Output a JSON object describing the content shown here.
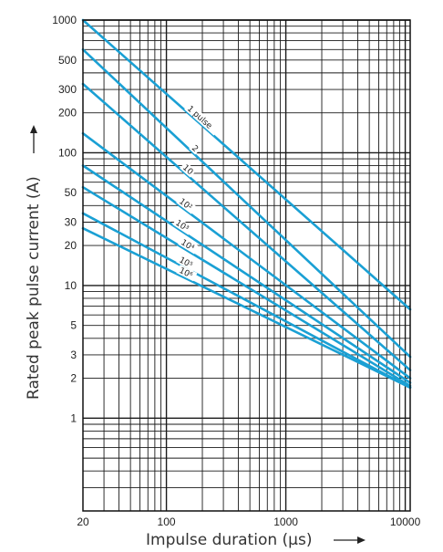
{
  "chart_data": {
    "type": "line",
    "title": "",
    "xlabel": "Impulse duration (μs)",
    "ylabel": "Rated peak pulse current (A)",
    "x_scale": "log",
    "y_scale": "log",
    "xlim": [
      20,
      11000
    ],
    "ylim": [
      0.2,
      1000
    ],
    "grid": true,
    "x_ticks": [
      20,
      100,
      1000,
      10000
    ],
    "y_ticks": [
      1000,
      500,
      300,
      200,
      100,
      50,
      30,
      20,
      10,
      5,
      3,
      2,
      1
    ],
    "series": [
      {
        "name": "1 pulse",
        "x": [
          20,
          11000
        ],
        "y": [
          1000,
          6.6
        ]
      },
      {
        "name": "2",
        "x": [
          20,
          11000
        ],
        "y": [
          600,
          2.9
        ]
      },
      {
        "name": "10",
        "x": [
          20,
          11000
        ],
        "y": [
          330,
          2.3
        ]
      },
      {
        "name": "10²",
        "x": [
          20,
          11000
        ],
        "y": [
          140,
          2.0
        ]
      },
      {
        "name": "10³",
        "x": [
          20,
          11000
        ],
        "y": [
          80,
          1.85
        ]
      },
      {
        "name": "10⁴",
        "x": [
          20,
          11000
        ],
        "y": [
          55,
          1.75
        ]
      },
      {
        "name": "10⁵",
        "x": [
          20,
          11000
        ],
        "y": [
          35,
          1.7
        ]
      },
      {
        "name": "10⁶",
        "x": [
          20,
          11000
        ],
        "y": [
          27,
          1.7
        ]
      }
    ],
    "line_color": "#1aa0d4"
  }
}
